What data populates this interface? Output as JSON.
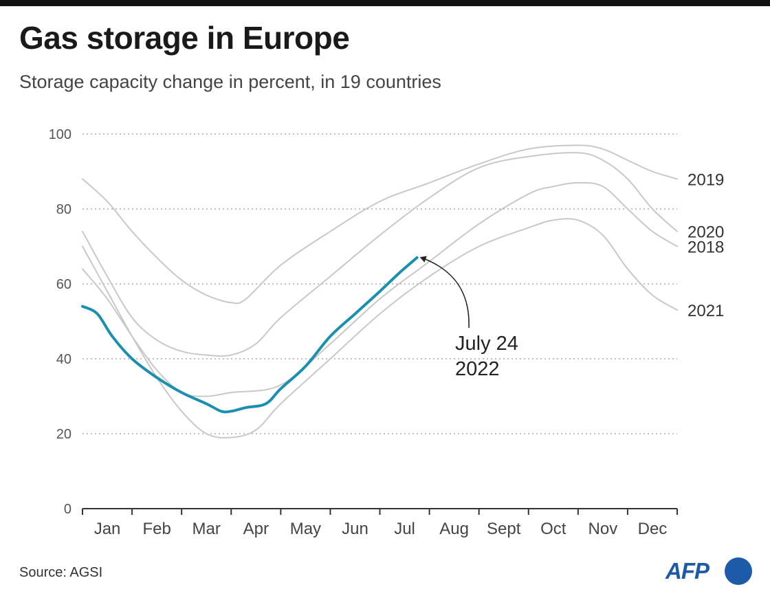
{
  "header": {
    "title": "Gas storage in Europe",
    "subtitle": "Storage capacity change in percent, in 19 countries"
  },
  "footer": {
    "source": "Source: AGSI",
    "logo_text": "AFP"
  },
  "colors": {
    "highlight": "#1a8fb0",
    "history": "#c8c8c8",
    "grid": "#999999",
    "axis": "#333333",
    "logo": "#1d5aa8"
  },
  "chart_data": {
    "type": "line",
    "title": "Gas storage in Europe",
    "subtitle": "Storage capacity change in percent, in 19 countries",
    "xlabel": "",
    "ylabel": "",
    "x_categories": [
      "Jan",
      "Feb",
      "Mar",
      "Apr",
      "May",
      "Jun",
      "Jul",
      "Aug",
      "Sept",
      "Oct",
      "Nov",
      "Dec"
    ],
    "y_ticks": [
      0,
      20,
      40,
      60,
      80,
      100
    ],
    "ylim": [
      0,
      100
    ],
    "grid": "horizontal dotted",
    "legend": "none (series labeled at right end)",
    "annotation": {
      "text_line1": "July 24",
      "text_line2": "2022",
      "points_to": {
        "x": 6.75,
        "y": 67
      }
    },
    "series": [
      {
        "name": "2019",
        "highlight": false,
        "points": [
          [
            0,
            88
          ],
          [
            0.5,
            82
          ],
          [
            1,
            74
          ],
          [
            1.5,
            67
          ],
          [
            2,
            61
          ],
          [
            2.5,
            57
          ],
          [
            3,
            55
          ],
          [
            3.3,
            56
          ],
          [
            4,
            65
          ],
          [
            5,
            74
          ],
          [
            6,
            82
          ],
          [
            7,
            87
          ],
          [
            8,
            92
          ],
          [
            9,
            96
          ],
          [
            10,
            97
          ],
          [
            10.5,
            96
          ],
          [
            11,
            93
          ],
          [
            11.5,
            90
          ],
          [
            12,
            88
          ]
        ]
      },
      {
        "name": "2020",
        "highlight": false,
        "points": [
          [
            0,
            74
          ],
          [
            0.5,
            62
          ],
          [
            1,
            51
          ],
          [
            1.5,
            45
          ],
          [
            2,
            42
          ],
          [
            2.5,
            41
          ],
          [
            3,
            41
          ],
          [
            3.5,
            44
          ],
          [
            4,
            51
          ],
          [
            5,
            62
          ],
          [
            6,
            73
          ],
          [
            7,
            83
          ],
          [
            8,
            91
          ],
          [
            9,
            94
          ],
          [
            10,
            95
          ],
          [
            10.5,
            93
          ],
          [
            11,
            88
          ],
          [
            11.5,
            80
          ],
          [
            12,
            74
          ]
        ]
      },
      {
        "name": "2018",
        "highlight": false,
        "points": [
          [
            0,
            64
          ],
          [
            0.5,
            56
          ],
          [
            1,
            46
          ],
          [
            1.5,
            37
          ],
          [
            2,
            31
          ],
          [
            2.5,
            30
          ],
          [
            3,
            31
          ],
          [
            4,
            33
          ],
          [
            5,
            44
          ],
          [
            6,
            56
          ],
          [
            7,
            66
          ],
          [
            8,
            76
          ],
          [
            9,
            84
          ],
          [
            9.5,
            86
          ],
          [
            10,
            87
          ],
          [
            10.5,
            86
          ],
          [
            11,
            80
          ],
          [
            11.5,
            74
          ],
          [
            12,
            70
          ]
        ]
      },
      {
        "name": "2021",
        "highlight": false,
        "points": [
          [
            0,
            70
          ],
          [
            0.5,
            58
          ],
          [
            1,
            46
          ],
          [
            1.5,
            35
          ],
          [
            2,
            26
          ],
          [
            2.5,
            20
          ],
          [
            3,
            19
          ],
          [
            3.5,
            21
          ],
          [
            4,
            28
          ],
          [
            5,
            40
          ],
          [
            6,
            52
          ],
          [
            7,
            62
          ],
          [
            8,
            70
          ],
          [
            9,
            75
          ],
          [
            9.5,
            77
          ],
          [
            10,
            77
          ],
          [
            10.5,
            73
          ],
          [
            11,
            64
          ],
          [
            11.5,
            57
          ],
          [
            12,
            53
          ]
        ]
      },
      {
        "name": "2022",
        "highlight": true,
        "points": [
          [
            0,
            54
          ],
          [
            0.3,
            52
          ],
          [
            0.6,
            46
          ],
          [
            1,
            40
          ],
          [
            1.5,
            35
          ],
          [
            2,
            31
          ],
          [
            2.5,
            28
          ],
          [
            2.8,
            26
          ],
          [
            3,
            26
          ],
          [
            3.3,
            27
          ],
          [
            3.7,
            28
          ],
          [
            4,
            32
          ],
          [
            4.5,
            38
          ],
          [
            5,
            46
          ],
          [
            5.5,
            52
          ],
          [
            6,
            58
          ],
          [
            6.4,
            63
          ],
          [
            6.75,
            67
          ]
        ]
      }
    ]
  }
}
